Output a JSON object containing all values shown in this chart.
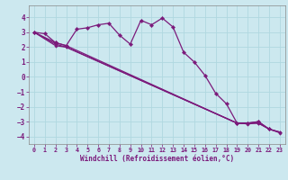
{
  "xlabel": "Windchill (Refroidissement éolien,°C)",
  "bg_color": "#cce8ef",
  "line_color": "#7b1a7b",
  "grid_color": "#b0d8e0",
  "xlim": [
    -0.5,
    23.5
  ],
  "ylim": [
    -4.5,
    4.8
  ],
  "yticks": [
    -4,
    -3,
    -2,
    -1,
    0,
    1,
    2,
    3,
    4
  ],
  "xticks": [
    0,
    1,
    2,
    3,
    4,
    5,
    6,
    7,
    8,
    9,
    10,
    11,
    12,
    13,
    14,
    15,
    16,
    17,
    18,
    19,
    20,
    21,
    22,
    23
  ],
  "series": [
    {
      "x": [
        0,
        1,
        2,
        3,
        4,
        5,
        6,
        7,
        8,
        9,
        10,
        11,
        12,
        13,
        14,
        15,
        16,
        17,
        18,
        19,
        20,
        21,
        22
      ],
      "y": [
        3.0,
        2.9,
        2.3,
        2.1,
        3.2,
        3.3,
        3.5,
        3.6,
        2.8,
        2.2,
        3.8,
        3.5,
        3.95,
        3.35,
        1.65,
        1.0,
        0.1,
        -1.1,
        -1.8,
        -3.1,
        -3.1,
        -3.0,
        -3.5
      ]
    },
    {
      "x": [
        0,
        2,
        3,
        19,
        20,
        21,
        22,
        23
      ],
      "y": [
        3.0,
        2.3,
        2.1,
        -3.1,
        -3.1,
        -3.0,
        -3.5,
        -3.7
      ]
    },
    {
      "x": [
        0,
        2,
        3,
        19,
        20,
        21,
        22,
        23
      ],
      "y": [
        3.0,
        2.2,
        2.0,
        -3.1,
        -3.1,
        -3.1,
        -3.5,
        -3.7
      ]
    },
    {
      "x": [
        0,
        2,
        3,
        19,
        20,
        21,
        22,
        23
      ],
      "y": [
        3.0,
        2.1,
        2.0,
        -3.1,
        -3.15,
        -3.1,
        -3.5,
        -3.75
      ]
    }
  ]
}
